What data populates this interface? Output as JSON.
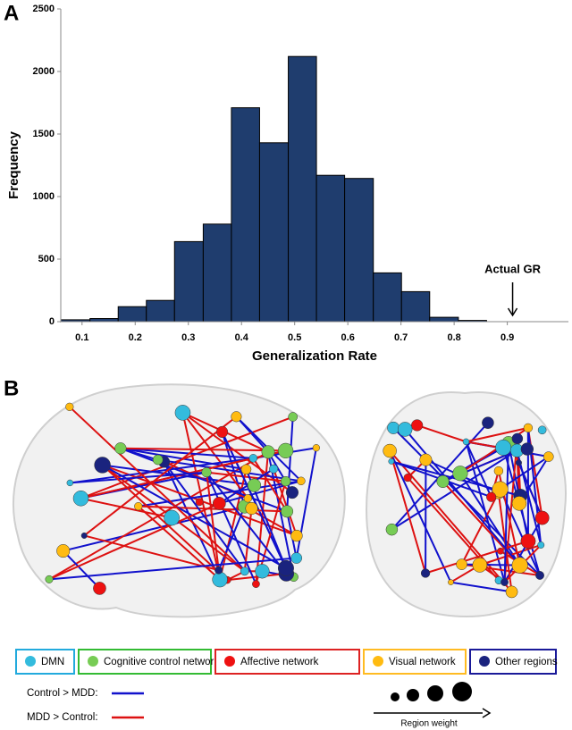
{
  "chart_data": {
    "type": "histogram",
    "panel_label": "A",
    "xlabel": "Generalization Rate",
    "ylabel": "Frequency",
    "bins": [
      0.06,
      0.115,
      0.168,
      0.221,
      0.274,
      0.328,
      0.381,
      0.434,
      0.488,
      0.541,
      0.594,
      0.648,
      0.701,
      0.754,
      0.808,
      0.861
    ],
    "values": [
      15,
      25,
      120,
      170,
      640,
      780,
      1710,
      1430,
      2120,
      1170,
      1145,
      390,
      240,
      35,
      10
    ],
    "color": "#1f3d6e",
    "xlim": [
      0.06,
      1.015
    ],
    "xticks": [
      0.1,
      0.2,
      0.3,
      0.4,
      0.5,
      0.6,
      0.7,
      0.8,
      0.9
    ],
    "ylim": [
      0,
      2500
    ],
    "yticks": [
      0,
      500,
      1000,
      1500,
      2000,
      2500
    ],
    "annotation": {
      "text": "Actual GR",
      "x": 0.91
    }
  },
  "panel_b": {
    "label": "B",
    "legend": [
      {
        "name": "DMN",
        "color": "#33bbdd",
        "border": "#22aadd"
      },
      {
        "name": "Cognitive control networks",
        "color": "#77cc55",
        "border": "#33bb33"
      },
      {
        "name": "Affective network",
        "color": "#ee1111",
        "border": "#dd2222"
      },
      {
        "name": "Visual  network",
        "color": "#ffbb11",
        "border": "#ffbb22"
      },
      {
        "name": "Other regions",
        "color": "#1a237e",
        "border": "#1a1a99"
      }
    ],
    "edges": [
      {
        "name": "Control > MDD:",
        "color": "#1111cc"
      },
      {
        "name": "MDD > Control:",
        "color": "#dd1111"
      }
    ],
    "size_legend": "Region weight"
  }
}
